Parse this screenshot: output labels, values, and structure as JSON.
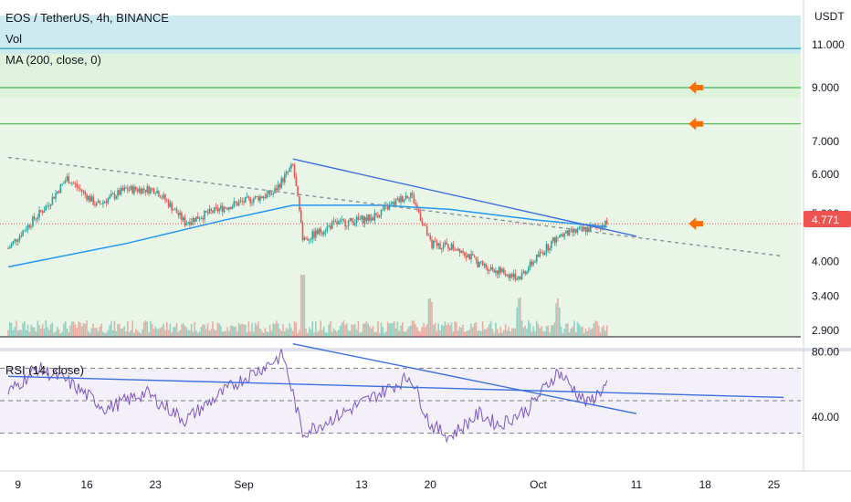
{
  "header": {
    "symbol": "EOS / TetherUS, 4h, BINANCE",
    "vol_label": "Vol",
    "ma_label": "MA (200, close, 0)"
  },
  "rsi_label": "RSI (14, close)",
  "currency": "USDT",
  "current_price": "4.771",
  "colors": {
    "bull": "#26a69a",
    "bear": "#ef5350",
    "ma": "#2196f3",
    "trendline": "#3d6fe0",
    "rsi": "#7e57c2",
    "arrow": "#ff6d00",
    "zone_top": "#cdeaf0",
    "zone_green": "#e6f5e4"
  },
  "chart_data": [
    {
      "type": "candlestick",
      "title": "EOS / TetherUS, 4h, BINANCE",
      "y_scale": "log",
      "y_ticks": [
        "11.000",
        "9.000",
        "7.000",
        "6.000",
        "5.000",
        "4.000",
        "3.400",
        "2.900"
      ],
      "x_ticks": [
        "9",
        "16",
        "23",
        "Sep",
        "13",
        "20",
        "Oct",
        "11",
        "18",
        "25"
      ],
      "price_path": [
        {
          "date": "2021-08-08",
          "price": 4.25
        },
        {
          "date": "2021-08-12",
          "price": 5.2
        },
        {
          "date": "2021-08-14",
          "price": 5.9
        },
        {
          "date": "2021-08-17",
          "price": 5.2
        },
        {
          "date": "2021-08-20",
          "price": 5.6
        },
        {
          "date": "2021-08-23",
          "price": 5.6
        },
        {
          "date": "2021-08-26",
          "price": 4.8
        },
        {
          "date": "2021-08-30",
          "price": 5.15
        },
        {
          "date": "2021-09-04",
          "price": 5.5
        },
        {
          "date": "2021-09-06",
          "price": 6.25
        },
        {
          "date": "2021-09-07",
          "price": 4.4
        },
        {
          "date": "2021-09-10",
          "price": 4.75
        },
        {
          "date": "2021-09-14",
          "price": 4.9
        },
        {
          "date": "2021-09-18",
          "price": 5.5
        },
        {
          "date": "2021-09-20",
          "price": 4.35
        },
        {
          "date": "2021-09-23",
          "price": 4.25
        },
        {
          "date": "2021-09-25",
          "price": 3.95
        },
        {
          "date": "2021-09-29",
          "price": 3.7
        },
        {
          "date": "2021-10-03",
          "price": 4.5
        },
        {
          "date": "2021-10-08",
          "price": 4.77
        }
      ],
      "volume_spikes": [
        "2021-09-07",
        "2021-09-20",
        "2021-09-29",
        "2021-10-03"
      ],
      "ma200": [
        {
          "date": "2021-08-08",
          "price": 3.9
        },
        {
          "date": "2021-08-20",
          "price": 4.35
        },
        {
          "date": "2021-08-30",
          "price": 4.85
        },
        {
          "date": "2021-09-06",
          "price": 5.2
        },
        {
          "date": "2021-09-15",
          "price": 5.2
        },
        {
          "date": "2021-09-22",
          "price": 5.1
        },
        {
          "date": "2021-10-01",
          "price": 4.85
        },
        {
          "date": "2021-10-08",
          "price": 4.7
        }
      ],
      "horizontal_levels": [
        10.8,
        9.0,
        7.6
      ],
      "current_price": 4.771,
      "trendlines": [
        {
          "style": "dashed",
          "from": {
            "date": "2021-08-08",
            "price": 6.5
          },
          "to": {
            "date": "2021-10-26",
            "price": 4.1
          }
        },
        {
          "style": "solid",
          "from": {
            "date": "2021-09-06",
            "price": 6.45
          },
          "to": {
            "date": "2021-10-11",
            "price": 4.5
          }
        }
      ],
      "target_arrows": [
        {
          "date": "2021-10-18",
          "price": 9.0
        },
        {
          "date": "2021-10-18",
          "price": 7.6
        },
        {
          "date": "2021-10-18",
          "price": 4.77
        }
      ]
    },
    {
      "type": "line",
      "title": "RSI (14, close)",
      "y_ticks": [
        "80.00",
        "40.00"
      ],
      "band": [
        30,
        70
      ],
      "rsi_path": [
        {
          "date": "2021-08-08",
          "rsi": 55
        },
        {
          "date": "2021-08-11",
          "rsi": 70
        },
        {
          "date": "2021-08-14",
          "rsi": 62
        },
        {
          "date": "2021-08-18",
          "rsi": 45
        },
        {
          "date": "2021-08-22",
          "rsi": 55
        },
        {
          "date": "2021-08-26",
          "rsi": 38
        },
        {
          "date": "2021-08-31",
          "rsi": 60
        },
        {
          "date": "2021-09-05",
          "rsi": 78
        },
        {
          "date": "2021-09-07",
          "rsi": 30
        },
        {
          "date": "2021-09-11",
          "rsi": 42
        },
        {
          "date": "2021-09-15",
          "rsi": 55
        },
        {
          "date": "2021-09-18",
          "rsi": 65
        },
        {
          "date": "2021-09-20",
          "rsi": 35
        },
        {
          "date": "2021-09-22",
          "rsi": 28
        },
        {
          "date": "2021-09-25",
          "rsi": 42
        },
        {
          "date": "2021-09-27",
          "rsi": 35
        },
        {
          "date": "2021-09-30",
          "rsi": 45
        },
        {
          "date": "2021-10-03",
          "rsi": 68
        },
        {
          "date": "2021-10-06",
          "rsi": 48
        },
        {
          "date": "2021-10-08",
          "rsi": 60
        }
      ],
      "trendlines": [
        {
          "from": {
            "date": "2021-08-08",
            "rsi": 65
          },
          "to": {
            "date": "2021-10-26",
            "rsi": 52
          }
        },
        {
          "from": {
            "date": "2021-09-06",
            "rsi": 85
          },
          "to": {
            "date": "2021-10-11",
            "rsi": 42
          }
        }
      ]
    }
  ]
}
